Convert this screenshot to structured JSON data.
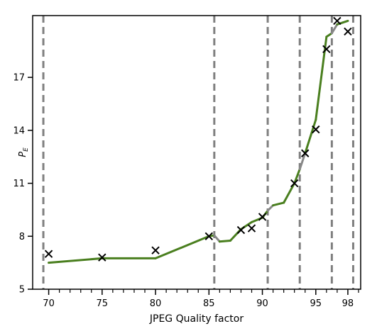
{
  "chart_data": {
    "type": "line",
    "title": "",
    "xlabel": "JPEG Quality factor",
    "ylabel": "P_E",
    "xlim": [
      68.5,
      99.2
    ],
    "ylim": [
      5,
      20.5
    ],
    "x_major_ticks": [
      70,
      75,
      80,
      85,
      90,
      95,
      98
    ],
    "x_minor_ticks": [
      71,
      72,
      73,
      74,
      76,
      77,
      78,
      79,
      81,
      82,
      83,
      84,
      86,
      87,
      88,
      89,
      91,
      92,
      93,
      94,
      96,
      97,
      99
    ],
    "y_ticks": [
      5,
      8,
      11,
      14,
      17
    ],
    "grid": false,
    "legend": "none",
    "vertical_lines": [
      69.5,
      85.5,
      90.5,
      93.5,
      96.5,
      98.5
    ],
    "series": [
      {
        "style": "line",
        "color": "#4a7f1f",
        "gray_color": "#888888",
        "x": [
          70,
          75,
          80,
          85,
          85.5,
          86,
          87,
          88,
          89,
          90,
          90.5,
          91,
          92,
          93,
          93.5,
          94,
          95,
          96,
          96.5,
          97,
          97.5,
          98
        ],
        "y": [
          6.5,
          6.75,
          6.75,
          8.0,
          8.05,
          7.7,
          7.75,
          8.4,
          8.8,
          9.05,
          9.45,
          9.75,
          9.9,
          11.0,
          11.8,
          12.7,
          14.6,
          19.3,
          19.5,
          20.0,
          20.1,
          20.2
        ],
        "gray_segments": [
          [
            85.5,
            86
          ],
          [
            90.5,
            91
          ],
          [
            93.5,
            94
          ],
          [
            96.5,
            97
          ]
        ]
      },
      {
        "style": "scatter",
        "marker": "x",
        "color": "#000000",
        "x": [
          70,
          75,
          80,
          85,
          88,
          89,
          90,
          93,
          94,
          95,
          96,
          97,
          98
        ],
        "y": [
          7.0,
          6.8,
          7.2,
          8.0,
          8.35,
          8.45,
          9.1,
          11.0,
          12.7,
          14.05,
          18.6,
          20.2,
          19.6
        ]
      }
    ]
  }
}
